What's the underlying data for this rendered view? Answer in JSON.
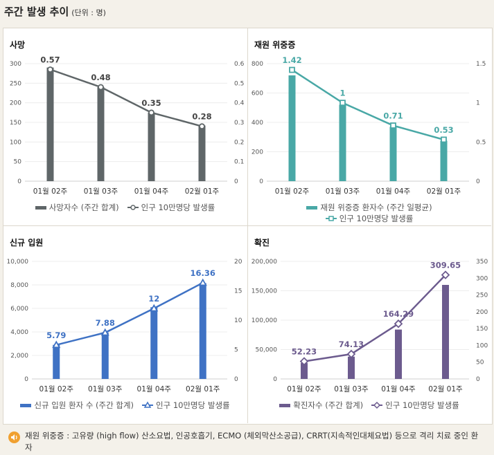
{
  "header": {
    "title": "주간 발생 추이",
    "unit": "(단위 : 명)"
  },
  "note": {
    "text": "재원 위중증 : 고유량 (high flow) 산소요법, 인공호흡기, ECMO (체외막산소공급), CRRT(지속적인대체요법) 등으로 격리 치료 중인 환자"
  },
  "chart_data": [
    {
      "type": "bar",
      "title": "사망",
      "categories": [
        "01월 02주",
        "01월 03주",
        "01월 04주",
        "02월 01주"
      ],
      "series": [
        {
          "name": "사망자수 (주간 합계)",
          "type": "bar",
          "axis": "left",
          "values": [
            290,
            240,
            175,
            142
          ]
        },
        {
          "name": "인구 10만명당 발생률",
          "type": "line",
          "axis": "right",
          "values": [
            0.57,
            0.48,
            0.35,
            0.28
          ],
          "labels": [
            "0.57",
            "0.48",
            "0.35",
            "0.28"
          ]
        }
      ],
      "left_axis": {
        "min": 0,
        "max": 300,
        "ticks": [
          "0",
          "50",
          "100",
          "150",
          "200",
          "250",
          "300"
        ]
      },
      "right_axis": {
        "min": 0,
        "max": 0.6,
        "ticks": [
          "0",
          "0.1",
          "0.2",
          "0.3",
          "0.4",
          "0.5",
          "0.6"
        ]
      },
      "colors": {
        "bar": "#5f6668",
        "line": "#5f6668"
      },
      "legend": {
        "bar": "사망자수 (주간 합계)",
        "line": "인구 10만명당 발생률"
      }
    },
    {
      "type": "bar",
      "title": "재원 위중증",
      "categories": [
        "01월 02주",
        "01월 03주",
        "01월 04주",
        "02월 01주"
      ],
      "series": [
        {
          "name": "재원 위중증 환자수 (주간 일평균)",
          "type": "bar",
          "axis": "left",
          "values": [
            720,
            520,
            370,
            275
          ]
        },
        {
          "name": "인구 10만명당 발생률",
          "type": "line",
          "axis": "right",
          "values": [
            1.42,
            1,
            0.71,
            0.53
          ],
          "labels": [
            "1.42",
            "1",
            "0.71",
            "0.53"
          ]
        }
      ],
      "left_axis": {
        "min": 0,
        "max": 800,
        "ticks": [
          "0",
          "200",
          "400",
          "600",
          "800"
        ]
      },
      "right_axis": {
        "min": 0,
        "max": 1.5,
        "ticks": [
          "0",
          "0.5",
          "1",
          "1.5"
        ]
      },
      "colors": {
        "bar": "#49a8a6",
        "line": "#49a8a6"
      },
      "legend": {
        "bar": "재원 위중증 환자수 (주간 일평균)",
        "line": "인구 10만명당 발생률"
      }
    },
    {
      "type": "bar",
      "title": "신규 입원",
      "categories": [
        "01월 02주",
        "01월 03주",
        "01월 04주",
        "02월 01주"
      ],
      "series": [
        {
          "name": "신규 입원 환자 수 (주간 합계)",
          "type": "bar",
          "axis": "left",
          "values": [
            2900,
            3950,
            6100,
            8150
          ]
        },
        {
          "name": "인구 10만명당 발생률",
          "type": "line",
          "axis": "right",
          "values": [
            5.79,
            7.88,
            12,
            16.36
          ],
          "labels": [
            "5.79",
            "7.88",
            "12",
            "16.36"
          ]
        }
      ],
      "left_axis": {
        "min": 0,
        "max": 10000,
        "ticks": [
          "0",
          "2,000",
          "4,000",
          "6,000",
          "8,000",
          "10,000"
        ]
      },
      "right_axis": {
        "min": 0,
        "max": 20,
        "ticks": [
          "0",
          "5",
          "10",
          "15",
          "20"
        ]
      },
      "colors": {
        "bar": "#3f72c4",
        "line": "#3f72c4"
      },
      "legend": {
        "bar": "신규 입원 환자 수 (주간 합계)",
        "line": "인구 10만명당 발생률"
      }
    },
    {
      "type": "bar",
      "title": "확진",
      "categories": [
        "01월 02주",
        "01월 03주",
        "01월 04주",
        "02월 01주"
      ],
      "series": [
        {
          "name": "확진자수 (주간 합계)",
          "type": "bar",
          "axis": "left",
          "values": [
            27000,
            38000,
            84000,
            160000
          ]
        },
        {
          "name": "인구 10만명당 발생률",
          "type": "line",
          "axis": "right",
          "values": [
            52.23,
            74.13,
            164.29,
            309.65
          ],
          "labels": [
            "52.23",
            "74.13",
            "164.29",
            "309.65"
          ]
        }
      ],
      "left_axis": {
        "min": 0,
        "max": 200000,
        "ticks": [
          "0",
          "50,000",
          "100,000",
          "150,000",
          "200,000"
        ]
      },
      "right_axis": {
        "min": 0,
        "max": 350,
        "ticks": [
          "0",
          "50",
          "100",
          "150",
          "200",
          "250",
          "300",
          "350"
        ]
      },
      "colors": {
        "bar": "#6c5b8e",
        "line": "#6c5b8e"
      },
      "legend": {
        "bar": "확진자수 (주간 합계)",
        "line": "인구 10만명당 발생률"
      }
    }
  ]
}
